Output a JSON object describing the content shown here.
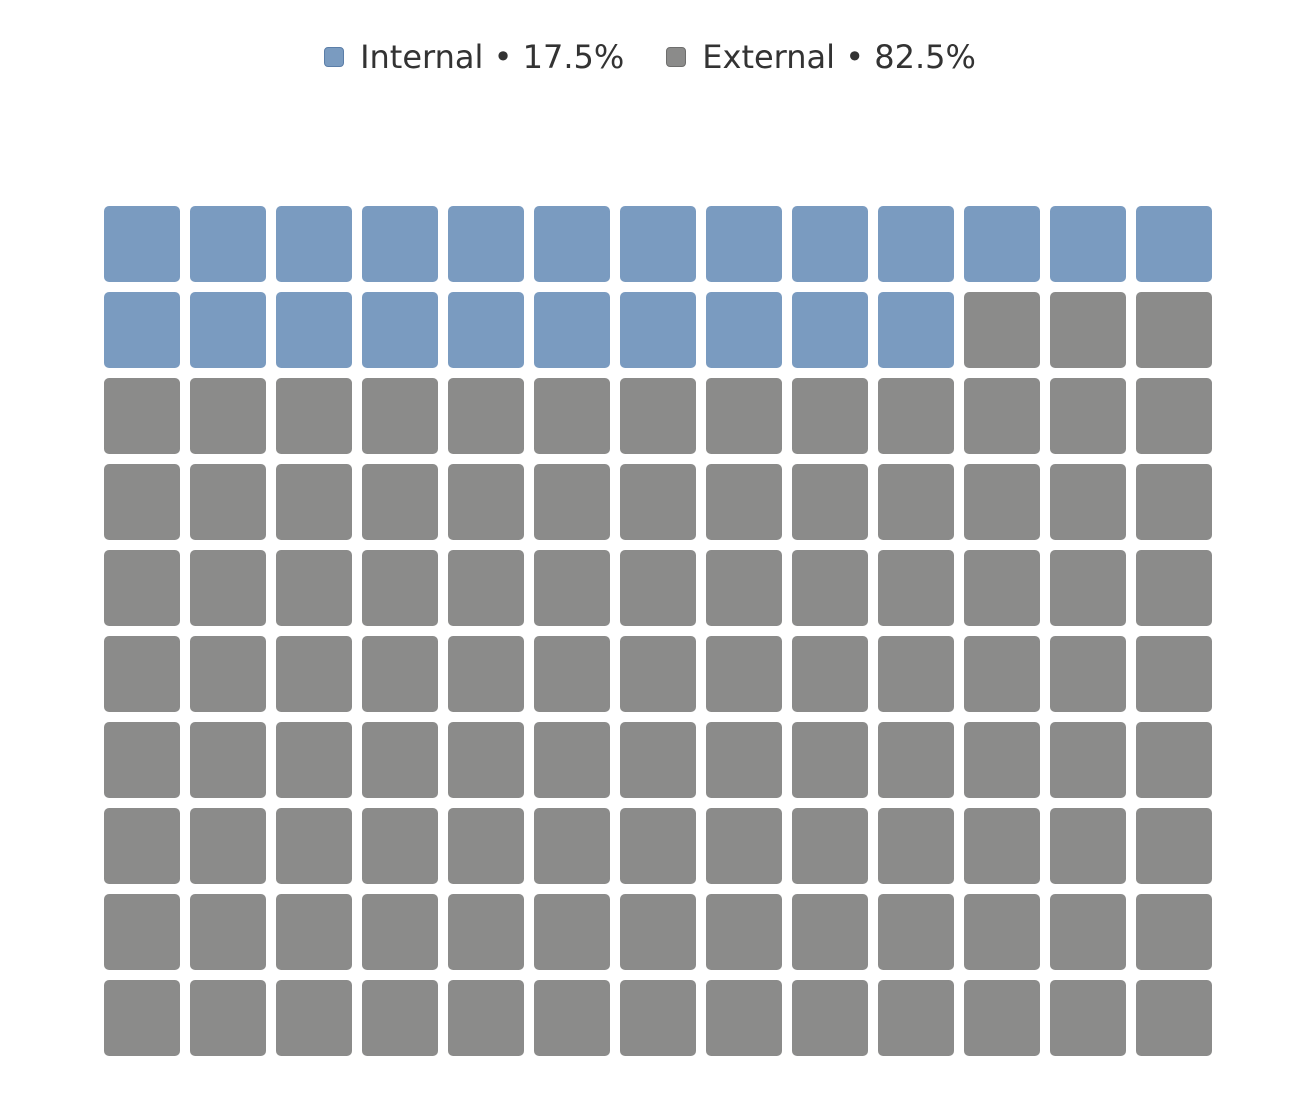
{
  "chart_data": {
    "type": "waffle",
    "rows": 10,
    "columns": 13,
    "fill_order": "row-major",
    "series": [
      {
        "name": "Internal",
        "label": "Internal • 17.5%",
        "percent": 17.5,
        "cells": 23,
        "color": "#7a9bc0",
        "border_color": "#5b7ea8"
      },
      {
        "name": "External",
        "label": "External • 82.5%",
        "percent": 82.5,
        "cells": 107,
        "color": "#8b8b8a",
        "border_color": "#6e6e6d"
      }
    ],
    "legend_position": "top-center"
  }
}
